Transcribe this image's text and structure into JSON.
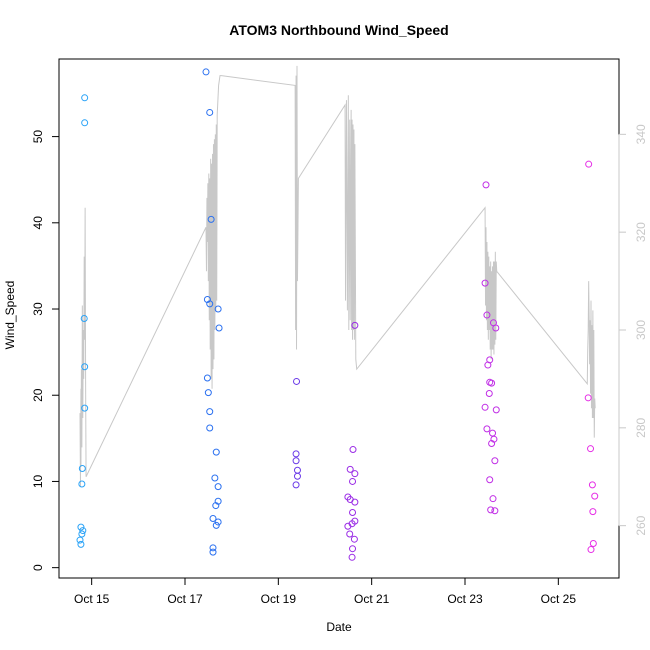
{
  "chart_data": {
    "type": "scatter",
    "title": "ATOM3 Northbound Wind_Speed",
    "xlabel": "Date",
    "ylabel": "Wind_Speed",
    "grid": false,
    "x_axis": {
      "range": [
        14.3,
        26.3
      ],
      "ticks": [
        15,
        17,
        19,
        21,
        23,
        25
      ],
      "tick_labels": [
        "Oct 15",
        "Oct 17",
        "Oct 19",
        "Oct 21",
        "Oct 23",
        "Oct 25"
      ]
    },
    "y_axis_left": {
      "range": [
        -1.2,
        59.0
      ],
      "ticks": [
        0,
        10,
        20,
        30,
        40,
        50
      ],
      "tick_labels": [
        "0",
        "10",
        "20",
        "30",
        "40",
        "50"
      ]
    },
    "y_axis_right": {
      "range": [
        249.3,
        355.4
      ],
      "ticks": [
        260,
        280,
        300,
        320,
        340
      ],
      "tick_labels": [
        "260",
        "280",
        "300",
        "320",
        "340"
      ],
      "color": "#c8c8c8"
    },
    "colors": {
      "line": "#c8c8c8",
      "points_start": "#2aa3f7",
      "points_mid": "#2a5de6",
      "points_purple": "#8a2be2",
      "points_end": "#e62ee6"
    },
    "points": [
      {
        "x": 14.77,
        "y": 4.7,
        "color": "#2aa3f7"
      },
      {
        "x": 14.79,
        "y": 3.9,
        "color": "#2aa3f7"
      },
      {
        "x": 14.75,
        "y": 3.2,
        "color": "#2aa3f7"
      },
      {
        "x": 14.77,
        "y": 2.7,
        "color": "#2aa3f7"
      },
      {
        "x": 14.81,
        "y": 4.3,
        "color": "#2aa3f7"
      },
      {
        "x": 14.79,
        "y": 9.7,
        "color": "#2aa3f7"
      },
      {
        "x": 14.8,
        "y": 11.5,
        "color": "#2aa3f7"
      },
      {
        "x": 14.85,
        "y": 18.5,
        "color": "#2aa3f7"
      },
      {
        "x": 14.85,
        "y": 23.3,
        "color": "#2aa3f7"
      },
      {
        "x": 14.84,
        "y": 28.9,
        "color": "#2aa3f7"
      },
      {
        "x": 14.85,
        "y": 51.6,
        "color": "#2aa3f7"
      },
      {
        "x": 14.85,
        "y": 54.5,
        "color": "#2aa3f7"
      },
      {
        "x": 17.45,
        "y": 57.5,
        "color": "#2a70f0"
      },
      {
        "x": 17.53,
        "y": 52.8,
        "color": "#2a70f0"
      },
      {
        "x": 17.56,
        "y": 40.4,
        "color": "#2a70f0"
      },
      {
        "x": 17.48,
        "y": 31.1,
        "color": "#2a70f0"
      },
      {
        "x": 17.53,
        "y": 30.6,
        "color": "#2a70f0"
      },
      {
        "x": 17.71,
        "y": 30.0,
        "color": "#2a70f0"
      },
      {
        "x": 17.73,
        "y": 27.8,
        "color": "#2a70f0"
      },
      {
        "x": 17.48,
        "y": 22.0,
        "color": "#2a70f0"
      },
      {
        "x": 17.5,
        "y": 20.3,
        "color": "#2a70f0"
      },
      {
        "x": 17.53,
        "y": 18.1,
        "color": "#2a70f0"
      },
      {
        "x": 17.53,
        "y": 16.2,
        "color": "#2a70f0"
      },
      {
        "x": 17.67,
        "y": 13.4,
        "color": "#2a70f0"
      },
      {
        "x": 17.64,
        "y": 10.4,
        "color": "#2a70f0"
      },
      {
        "x": 17.71,
        "y": 9.4,
        "color": "#2a70f0"
      },
      {
        "x": 17.71,
        "y": 7.7,
        "color": "#2a70f0"
      },
      {
        "x": 17.66,
        "y": 7.2,
        "color": "#2a70f0"
      },
      {
        "x": 17.6,
        "y": 5.7,
        "color": "#2a70f0"
      },
      {
        "x": 17.71,
        "y": 5.3,
        "color": "#2a70f0"
      },
      {
        "x": 17.67,
        "y": 4.9,
        "color": "#2a70f0"
      },
      {
        "x": 17.6,
        "y": 2.3,
        "color": "#2a70f0"
      },
      {
        "x": 17.6,
        "y": 1.8,
        "color": "#2a70f0"
      },
      {
        "x": 19.39,
        "y": 21.6,
        "color": "#6a3ae8"
      },
      {
        "x": 19.38,
        "y": 13.2,
        "color": "#6a3ae8"
      },
      {
        "x": 19.38,
        "y": 12.4,
        "color": "#6a3ae8"
      },
      {
        "x": 19.41,
        "y": 11.3,
        "color": "#6a3ae8"
      },
      {
        "x": 19.41,
        "y": 10.6,
        "color": "#6a3ae8"
      },
      {
        "x": 19.38,
        "y": 9.6,
        "color": "#6a3ae8"
      },
      {
        "x": 20.64,
        "y": 28.1,
        "color": "#9a2be6"
      },
      {
        "x": 20.6,
        "y": 13.7,
        "color": "#9a2be6"
      },
      {
        "x": 20.54,
        "y": 11.4,
        "color": "#9a2be6"
      },
      {
        "x": 20.64,
        "y": 10.9,
        "color": "#9a2be6"
      },
      {
        "x": 20.59,
        "y": 10.0,
        "color": "#9a2be6"
      },
      {
        "x": 20.49,
        "y": 8.2,
        "color": "#9a2be6"
      },
      {
        "x": 20.54,
        "y": 7.9,
        "color": "#9a2be6"
      },
      {
        "x": 20.64,
        "y": 7.6,
        "color": "#9a2be6"
      },
      {
        "x": 20.59,
        "y": 6.4,
        "color": "#9a2be6"
      },
      {
        "x": 20.64,
        "y": 5.4,
        "color": "#9a2be6"
      },
      {
        "x": 20.49,
        "y": 4.8,
        "color": "#9a2be6"
      },
      {
        "x": 20.58,
        "y": 5.1,
        "color": "#9a2be6"
      },
      {
        "x": 20.53,
        "y": 3.9,
        "color": "#9a2be6"
      },
      {
        "x": 20.63,
        "y": 3.3,
        "color": "#9a2be6"
      },
      {
        "x": 20.59,
        "y": 2.2,
        "color": "#9a2be6"
      },
      {
        "x": 20.58,
        "y": 1.2,
        "color": "#9a2be6"
      },
      {
        "x": 23.45,
        "y": 44.4,
        "color": "#c02de6"
      },
      {
        "x": 23.43,
        "y": 33.0,
        "color": "#c02de6"
      },
      {
        "x": 23.47,
        "y": 29.3,
        "color": "#c02de6"
      },
      {
        "x": 23.61,
        "y": 28.4,
        "color": "#c02de6"
      },
      {
        "x": 23.66,
        "y": 27.8,
        "color": "#c02de6"
      },
      {
        "x": 23.53,
        "y": 24.1,
        "color": "#c02de6"
      },
      {
        "x": 23.49,
        "y": 23.5,
        "color": "#c02de6"
      },
      {
        "x": 23.53,
        "y": 21.5,
        "color": "#c02de6"
      },
      {
        "x": 23.57,
        "y": 21.4,
        "color": "#c02de6"
      },
      {
        "x": 23.52,
        "y": 20.2,
        "color": "#c02de6"
      },
      {
        "x": 23.43,
        "y": 18.6,
        "color": "#c02de6"
      },
      {
        "x": 23.67,
        "y": 18.3,
        "color": "#c02de6"
      },
      {
        "x": 23.47,
        "y": 16.1,
        "color": "#c02de6"
      },
      {
        "x": 23.59,
        "y": 15.6,
        "color": "#c02de6"
      },
      {
        "x": 23.62,
        "y": 14.9,
        "color": "#c02de6"
      },
      {
        "x": 23.57,
        "y": 14.4,
        "color": "#c02de6"
      },
      {
        "x": 23.64,
        "y": 12.4,
        "color": "#c02de6"
      },
      {
        "x": 23.53,
        "y": 10.2,
        "color": "#c02de6"
      },
      {
        "x": 23.6,
        "y": 8.0,
        "color": "#c02de6"
      },
      {
        "x": 23.55,
        "y": 6.7,
        "color": "#c02de6"
      },
      {
        "x": 23.64,
        "y": 6.6,
        "color": "#c02de6"
      },
      {
        "x": 25.65,
        "y": 46.8,
        "color": "#e62ee6"
      },
      {
        "x": 25.64,
        "y": 19.7,
        "color": "#e62ee6"
      },
      {
        "x": 25.69,
        "y": 13.8,
        "color": "#e62ee6"
      },
      {
        "x": 25.73,
        "y": 9.6,
        "color": "#e62ee6"
      },
      {
        "x": 25.78,
        "y": 8.3,
        "color": "#e62ee6"
      },
      {
        "x": 25.74,
        "y": 6.5,
        "color": "#e62ee6"
      },
      {
        "x": 25.75,
        "y": 2.8,
        "color": "#e62ee6"
      },
      {
        "x": 25.7,
        "y": 2.1,
        "color": "#e62ee6"
      }
    ],
    "line_series": {
      "axis": "right",
      "color": "#c8c8c8",
      "x": [
        14.75,
        14.76,
        14.77,
        14.77,
        14.78,
        14.79,
        14.8,
        14.81,
        14.82,
        14.83,
        14.84,
        14.85,
        14.86,
        14.87,
        14.88,
        17.45,
        17.46,
        17.47,
        17.48,
        17.49,
        17.5,
        17.51,
        17.52,
        17.53,
        17.54,
        17.55,
        17.56,
        17.57,
        17.58,
        17.59,
        17.6,
        17.61,
        17.62,
        17.63,
        17.64,
        17.65,
        17.66,
        17.67,
        17.68,
        17.69,
        17.7,
        17.72,
        17.75,
        17.78,
        19.36,
        19.37,
        19.38,
        19.39,
        19.4,
        19.41,
        19.42,
        19.43,
        20.43,
        20.44,
        20.46,
        20.48,
        20.5,
        20.51,
        20.53,
        20.54,
        20.56,
        20.57,
        20.58,
        20.59,
        20.6,
        20.61,
        20.62,
        20.63,
        20.64,
        20.66,
        20.68,
        23.43,
        23.44,
        23.45,
        23.46,
        23.47,
        23.48,
        23.49,
        23.5,
        23.51,
        23.52,
        23.53,
        23.54,
        23.55,
        23.56,
        23.57,
        23.58,
        23.59,
        23.6,
        23.61,
        23.62,
        23.63,
        23.64,
        23.65,
        23.66,
        23.67,
        23.68,
        25.62,
        25.63,
        25.64,
        25.65,
        25.66,
        25.67,
        25.68,
        25.69,
        25.7,
        25.71,
        25.72,
        25.73,
        25.74,
        25.75,
        25.76,
        25.77,
        25.78,
        25.79
      ],
      "y": [
        283,
        268,
        288,
        272,
        292,
        276,
        305,
        282,
        300,
        290,
        315,
        298,
        325,
        290,
        270,
        321,
        312,
        327,
        318,
        330,
        310,
        332,
        302,
        331,
        296,
        335,
        290,
        334,
        288,
        336,
        292,
        338,
        294,
        339,
        300,
        340,
        304,
        342,
        306,
        344,
        346,
        350,
        352,
        352,
        350,
        300,
        352,
        296,
        354,
        310,
        320,
        331,
        346,
        306,
        347,
        304,
        348,
        300,
        343,
        302,
        345,
        300,
        343,
        298,
        342,
        300,
        341,
        298,
        338,
        294,
        292,
        325,
        305,
        321,
        302,
        318,
        300,
        316,
        298,
        315,
        300,
        313,
        296,
        314,
        294,
        312,
        296,
        313,
        296,
        314,
        295,
        314,
        297,
        316,
        298,
        314,
        312,
        289,
        296,
        300,
        310,
        303,
        293,
        302,
        287,
        306,
        284,
        301,
        282,
        304,
        282,
        300,
        278,
        286,
        284
      ]
    }
  }
}
